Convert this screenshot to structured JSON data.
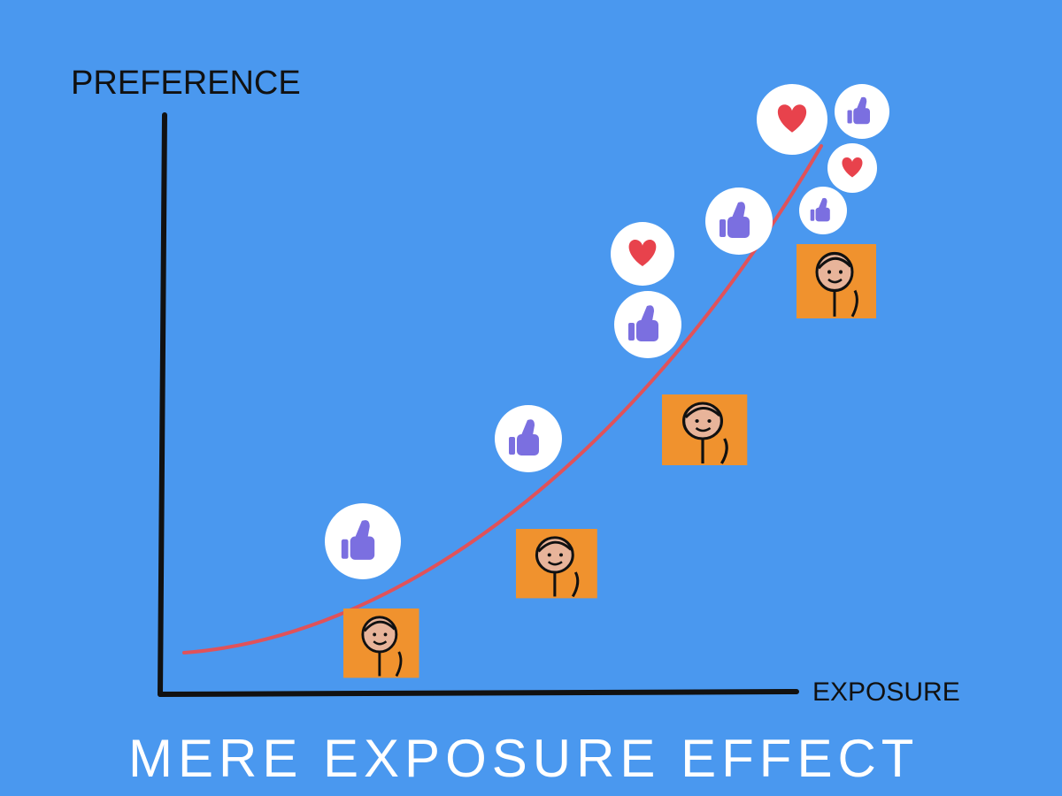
{
  "y_axis_label": "PREFERENCE",
  "x_axis_label": "EXPOSURE",
  "title": "MERE EXPOSURE EFFECT"
}
